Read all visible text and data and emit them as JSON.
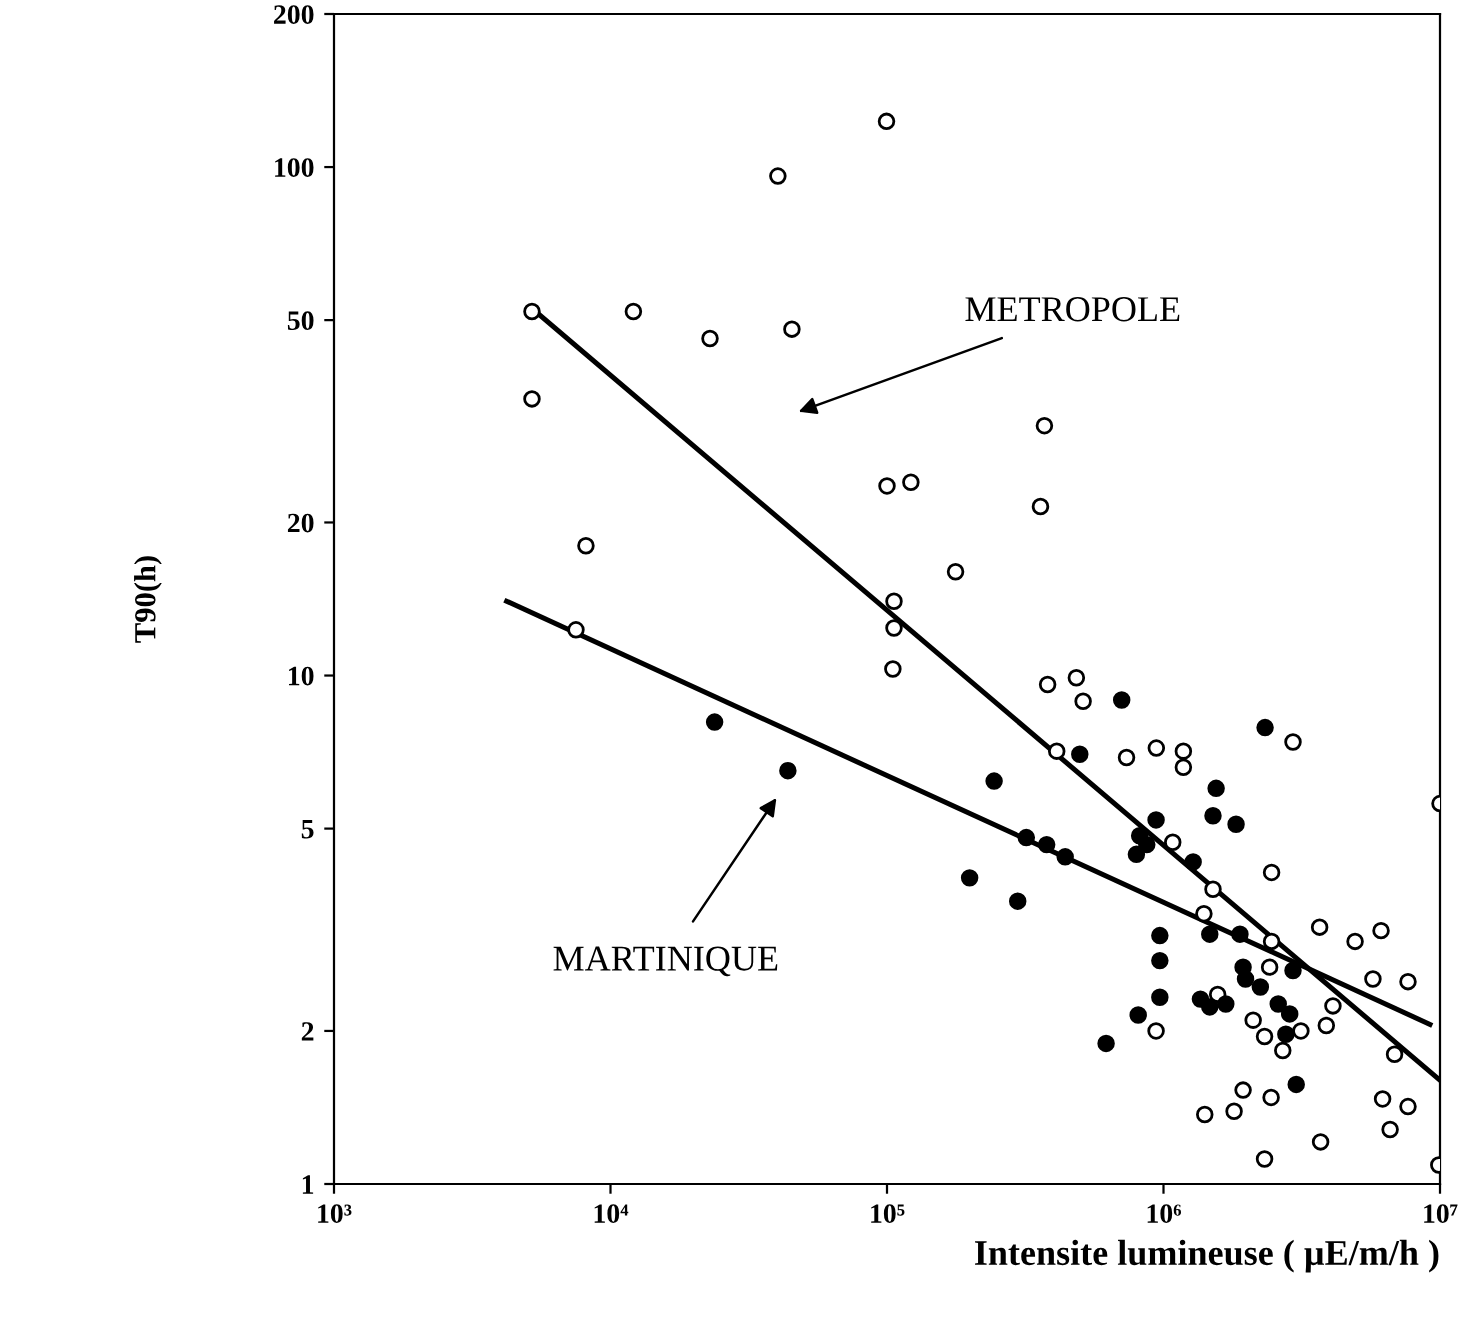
{
  "chart_data": {
    "type": "scatter",
    "xlabel": "Intensite lumineuse ( µE/m/h )",
    "ylabel": "T90(h)",
    "log": "xy",
    "grid": false,
    "legend": false,
    "marker": "circle",
    "xlim": [
      1000,
      10000000
    ],
    "xticks": [
      {
        "value": 1000,
        "label": "10³"
      },
      {
        "value": 10000,
        "label": "10⁴"
      },
      {
        "value": 100000,
        "label": "10⁵"
      },
      {
        "value": 1000000,
        "label": "10⁶"
      },
      {
        "value": 10000000,
        "label": "10⁷"
      }
    ],
    "ylim": [
      1,
      200
    ],
    "yticks": [
      1,
      2,
      5,
      10,
      20,
      50,
      100,
      200
    ],
    "series": [
      {
        "color": "#ffffff",
        "x": [
          5200,
          12100,
          22900,
          45300,
          40300,
          5200,
          8150,
          7500,
          99600,
          371000,
          100000,
          122000,
          359000,
          177000,
          106000,
          106000,
          105000,
          381000,
          484000,
          512000,
          411000,
          735000,
          942000,
          1180000,
          1180000,
          2940000,
          10000000,
          1080000,
          2460000,
          1510000,
          1400000,
          2460000,
          3670000,
          4930000,
          6120000,
          2420000,
          5720000,
          7660000,
          4100000,
          1570000,
          2110000,
          2320000,
          940000,
          2700000,
          3140000,
          3880000,
          6850000,
          1940000,
          1410000,
          1800000,
          2450000,
          6200000,
          7660000,
          6600000,
          2320000,
          3700000,
          9900000
        ],
        "values": [
          52,
          52,
          46,
          48,
          96,
          35,
          18,
          12.3,
          123,
          31,
          23.6,
          24,
          21.5,
          16,
          14,
          12.4,
          10.3,
          9.6,
          9.9,
          8.9,
          7.1,
          6.9,
          7.2,
          7.1,
          6.6,
          7.4,
          5.6,
          4.7,
          4.1,
          3.8,
          3.4,
          3.0,
          3.2,
          3.0,
          3.15,
          2.67,
          2.53,
          2.5,
          2.24,
          2.36,
          2.1,
          1.95,
          2.0,
          1.83,
          2.0,
          2.05,
          1.8,
          1.53,
          1.37,
          1.39,
          1.48,
          1.47,
          1.42,
          1.28,
          1.12,
          1.21,
          1.09
        ]
      },
      {
        "color": "#000000",
        "x": [
          706000,
          2330000,
          244000,
          498000,
          1550000,
          1510000,
          1830000,
          940000,
          820000,
          870000,
          798000,
          1280000,
          319000,
          378000,
          441000,
          199000,
          297000,
          970000,
          970000,
          970000,
          810000,
          620000,
          1470000,
          1890000,
          1360000,
          1470000,
          1680000,
          1940000,
          1980000,
          2240000,
          2940000,
          2600000,
          2860000,
          2770000,
          3020000,
          23800,
          43800
        ],
        "values": [
          8.95,
          7.9,
          6.2,
          7.0,
          6.0,
          5.3,
          5.1,
          5.2,
          4.84,
          4.65,
          4.45,
          4.3,
          4.8,
          4.65,
          4.4,
          4.0,
          3.6,
          3.08,
          2.75,
          2.33,
          2.15,
          1.89,
          3.1,
          3.1,
          2.31,
          2.23,
          2.26,
          2.67,
          2.53,
          2.44,
          2.63,
          2.26,
          2.16,
          1.97,
          1.57,
          8.1,
          6.5
        ]
      },
      {
        "type": "line",
        "marker": "none",
        "color": "#000000",
        "x": [
          5200,
          10000000
        ],
        "values": [
          52.7,
          1.6
        ]
      },
      {
        "type": "line",
        "marker": "none",
        "color": "#000000",
        "x": [
          4210,
          9200000
        ],
        "values": [
          14,
          2.06
        ]
      }
    ],
    "annotations": [
      "METROPOLE",
      "MARTINIQUE"
    ]
  }
}
